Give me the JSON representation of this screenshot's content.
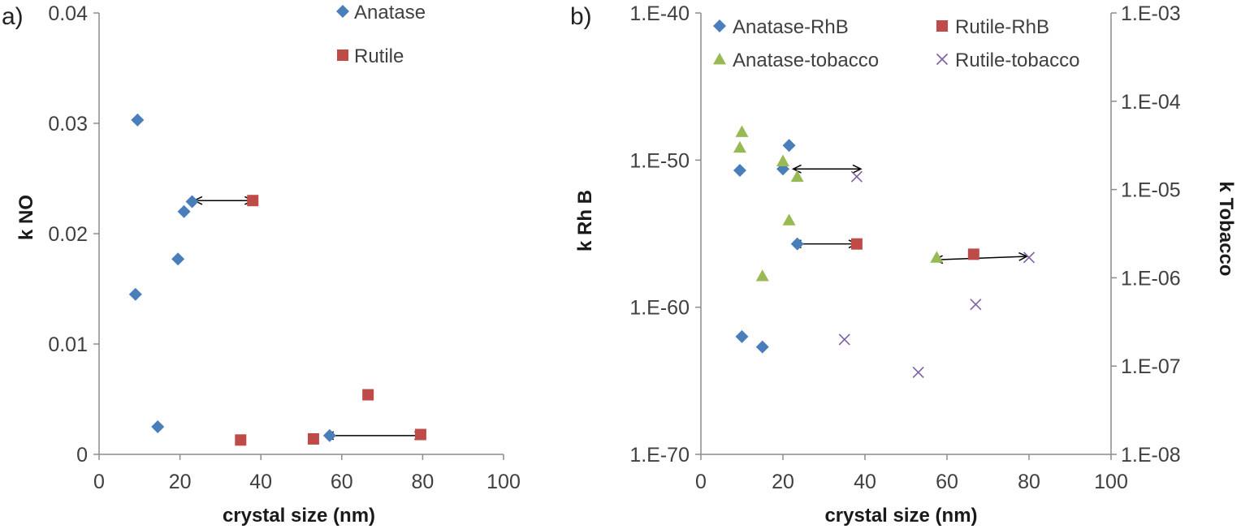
{
  "chart_data": [
    {
      "type": "scatter",
      "panel_label": "a)",
      "title": "",
      "xlabel": "crystal size (nm)",
      "ylabel": "k NO",
      "xlim": [
        0,
        100
      ],
      "ylim": [
        0,
        0.04
      ],
      "x_ticks": [
        0,
        20,
        40,
        60,
        80,
        100
      ],
      "x_tick_labels": [
        "0",
        "20",
        "40",
        "60",
        "80",
        "100"
      ],
      "y_ticks": [
        0,
        0.01,
        0.02,
        0.03,
        0.04
      ],
      "y_tick_labels": [
        "0",
        "0.01",
        "0.02",
        "0.03",
        "0.04"
      ],
      "grid": false,
      "legend_position": "top-center, stacked",
      "series": [
        {
          "name": "Anatase",
          "marker": "diamond",
          "color": "#4a7ebb",
          "points": [
            [
              9.5,
              0.0303
            ],
            [
              9,
              0.0145
            ],
            [
              14.5,
              0.0025
            ],
            [
              19.5,
              0.0177
            ],
            [
              21,
              0.022
            ],
            [
              23,
              0.0229
            ],
            [
              57,
              0.0017
            ]
          ]
        },
        {
          "name": "Rutile",
          "marker": "square",
          "color": "#be4b48",
          "points": [
            [
              38,
              0.023
            ],
            [
              35,
              0.0013
            ],
            [
              53,
              0.0014
            ],
            [
              66.5,
              0.0054
            ],
            [
              79.5,
              0.0018
            ]
          ]
        }
      ],
      "annotations": [
        {
          "type": "double-arrow",
          "from": [
            23.5,
            0.023
          ],
          "to": [
            38,
            0.023
          ]
        },
        {
          "type": "double-arrow",
          "from": [
            56,
            0.0017
          ],
          "to": [
            80,
            0.0017
          ]
        }
      ]
    },
    {
      "type": "scatter",
      "panel_label": "b)",
      "title": "",
      "xlabel": "crystal size (nm)",
      "ylabel_left": "k Rh B",
      "ylabel_right": "k Tobacco",
      "xlim": [
        0,
        100
      ],
      "ylim_left": [
        1e-70,
        1e-40
      ],
      "ylim_right": [
        1e-08,
        0.001
      ],
      "y_scale": "log",
      "x_ticks": [
        0,
        20,
        40,
        60,
        80,
        100
      ],
      "x_tick_labels": [
        "0",
        "20",
        "40",
        "60",
        "80",
        "100"
      ],
      "y_left_tick_labels": [
        "1.E-40",
        "1.E-50",
        "1.E-60",
        "1.E-70"
      ],
      "y_right_tick_labels": [
        "1.E-03",
        "1.E-04",
        "1.E-05",
        "1.E-06",
        "1.E-07",
        "1.E-08"
      ],
      "grid": false,
      "legend_position": "top, 2 columns",
      "series": [
        {
          "name": "Anatase-RhB",
          "axis": "left",
          "marker": "diamond",
          "color": "#4a7ebb",
          "points": [
            [
              9.5,
              2e-51
            ],
            [
              20,
              2.5e-51
            ],
            [
              21.5,
              1e-49
            ],
            [
              23.5,
              2e-56
            ],
            [
              10,
              1e-62
            ],
            [
              15,
              2e-63
            ]
          ]
        },
        {
          "name": "Rutile-RhB",
          "axis": "left",
          "marker": "square",
          "color": "#be4b48",
          "points": [
            [
              38,
              2e-56
            ],
            [
              66.5,
              4e-57
            ]
          ]
        },
        {
          "name": "Anatase-tobacco",
          "axis": "right",
          "marker": "triangle",
          "color": "#98b954",
          "points": [
            [
              10,
              4.5e-05
            ],
            [
              9.5,
              3e-05
            ],
            [
              20,
              2.1e-05
            ],
            [
              23.5,
              1.4e-05
            ],
            [
              21.5,
              4.5e-06
            ],
            [
              15,
              1.05e-06
            ],
            [
              57.5,
              1.7e-06
            ]
          ]
        },
        {
          "name": "Rutile-tobacco",
          "axis": "right",
          "marker": "x",
          "color": "#7d60a0",
          "points": [
            [
              38,
              1.4e-05
            ],
            [
              80,
              1.7e-06
            ],
            [
              67,
              5e-07
            ],
            [
              35,
              2e-07
            ],
            [
              53,
              8.5e-08
            ]
          ]
        }
      ],
      "annotations": [
        {
          "type": "double-arrow",
          "axis": "left",
          "from": [
            22.5,
            2.5e-51
          ],
          "to": [
            39,
            2.5e-51
          ]
        },
        {
          "type": "double-arrow",
          "axis": "left",
          "from": [
            22.5,
            2e-56
          ],
          "to": [
            38,
            2e-56
          ]
        },
        {
          "type": "double-arrow",
          "axis": "right",
          "from": [
            57,
            1.6e-06
          ],
          "to": [
            79.5,
            1.75e-06
          ]
        }
      ]
    }
  ]
}
